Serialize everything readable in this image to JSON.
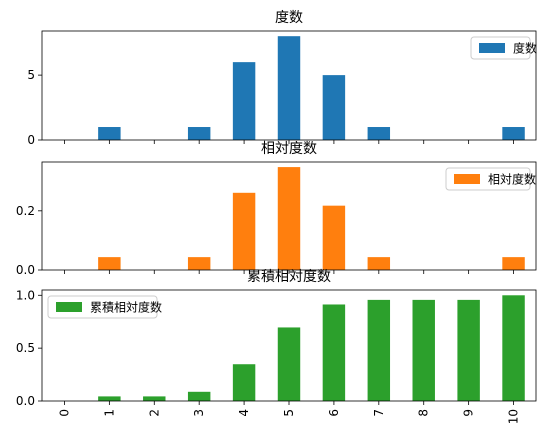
{
  "chart_data": [
    {
      "type": "bar",
      "title": "度数",
      "categories": [
        "0",
        "1",
        "2",
        "3",
        "4",
        "5",
        "6",
        "7",
        "8",
        "9",
        "10"
      ],
      "series": [
        {
          "name": "度数",
          "color": "#1f77b4",
          "values": [
            0,
            1,
            0,
            1,
            6,
            8,
            5,
            1,
            0,
            0,
            1
          ]
        }
      ],
      "ylim": [
        0,
        8.4
      ],
      "yticks": [
        0,
        5
      ],
      "ytick_labels": [
        "0",
        "5"
      ],
      "show_xtick_labels": false,
      "legend": "top-right",
      "grid": false
    },
    {
      "type": "bar",
      "title": "相対度数",
      "categories": [
        "0",
        "1",
        "2",
        "3",
        "4",
        "5",
        "6",
        "7",
        "8",
        "9",
        "10"
      ],
      "series": [
        {
          "name": "相対度数",
          "color": "#ff7f0e",
          "values": [
            0,
            0.0435,
            0,
            0.0435,
            0.2609,
            0.3478,
            0.2174,
            0.0435,
            0,
            0,
            0.0435
          ]
        }
      ],
      "ylim": [
        0,
        0.365
      ],
      "yticks": [
        0,
        0.2
      ],
      "ytick_labels": [
        "0.0",
        "0.2"
      ],
      "show_xtick_labels": false,
      "legend": "top-right",
      "grid": false
    },
    {
      "type": "bar",
      "title": "累積相対度数",
      "categories": [
        "0",
        "1",
        "2",
        "3",
        "4",
        "5",
        "6",
        "7",
        "8",
        "9",
        "10"
      ],
      "series": [
        {
          "name": "累積相対度数",
          "color": "#2ca02c",
          "values": [
            0,
            0.0435,
            0.0435,
            0.087,
            0.3478,
            0.6957,
            0.913,
            0.9565,
            0.9565,
            0.9565,
            1.0
          ]
        }
      ],
      "ylim": [
        0,
        1.05
      ],
      "yticks": [
        0,
        0.5,
        1.0
      ],
      "ytick_labels": [
        "0.0",
        "0.5",
        "1.0"
      ],
      "show_xtick_labels": true,
      "legend": "top-left",
      "grid": false
    }
  ]
}
